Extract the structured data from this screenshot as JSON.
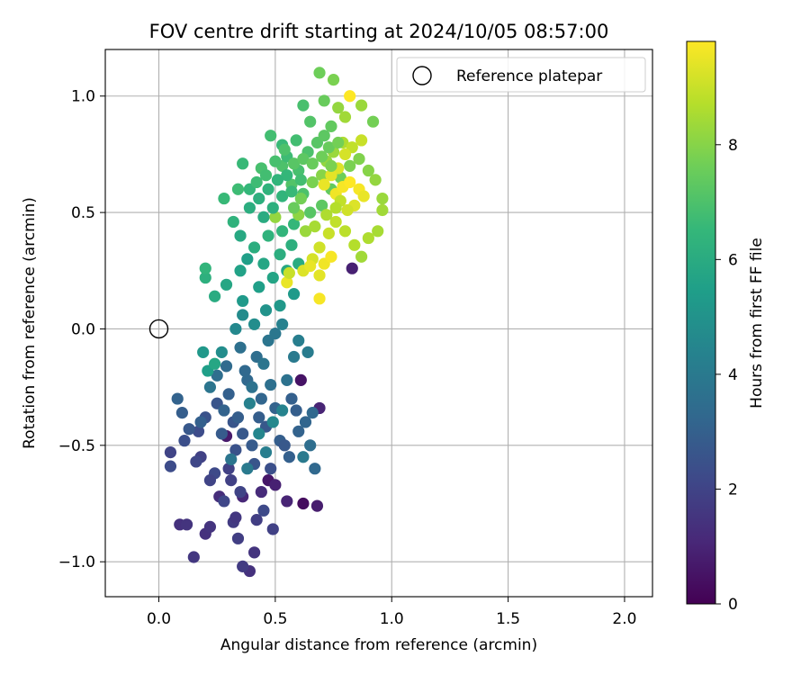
{
  "chart_data": {
    "type": "scatter",
    "title": "FOV centre drift starting at 2024/10/05 08:57:00",
    "xlabel": "Angular distance from reference (arcmin)",
    "ylabel": "Rotation from reference (arcmin)",
    "xlim": [
      -0.23,
      2.12
    ],
    "ylim": [
      -1.15,
      1.2
    ],
    "xticks": [
      0.0,
      0.5,
      1.0,
      1.5,
      2.0
    ],
    "xtick_labels": [
      "0.0",
      "0.5",
      "1.0",
      "1.5",
      "2.0"
    ],
    "yticks": [
      -1.0,
      -0.5,
      0.0,
      0.5,
      1.0
    ],
    "ytick_labels": [
      "−1.0",
      "−0.5",
      "0.0",
      "0.5",
      "1.0"
    ],
    "grid": true,
    "legend": {
      "position": "upper right",
      "entries": [
        "Reference platepar"
      ]
    },
    "reference_point": {
      "x": 0.0,
      "y": 0.0,
      "marker": "open-circle"
    },
    "colorbar": {
      "label": "Hours from first FF file",
      "range": [
        0,
        9.8
      ],
      "ticks": [
        0,
        2,
        4,
        6,
        8
      ],
      "tick_labels": [
        "0",
        "2",
        "4",
        "6",
        "8"
      ],
      "colormap": "viridis"
    },
    "colormap_stops": [
      "#440154",
      "#482878",
      "#3e4989",
      "#31688e",
      "#26828e",
      "#1f9e89",
      "#35b779",
      "#6ece58",
      "#b5de2b",
      "#fde725"
    ],
    "points": [
      [
        0.62,
        -0.75,
        0.3
      ],
      [
        0.68,
        -0.76,
        0.8
      ],
      [
        0.61,
        -0.22,
        0.5
      ],
      [
        0.47,
        -0.65,
        0.6
      ],
      [
        0.29,
        -0.46,
        0.7
      ],
      [
        0.5,
        -0.67,
        0.9
      ],
      [
        0.69,
        -0.34,
        1.0
      ],
      [
        0.36,
        -0.72,
        1.1
      ],
      [
        0.44,
        -0.7,
        1.2
      ],
      [
        0.55,
        -0.74,
        1.0
      ],
      [
        0.83,
        0.26,
        0.9
      ],
      [
        0.09,
        -0.84,
        1.4
      ],
      [
        0.12,
        -0.84,
        1.5
      ],
      [
        0.15,
        -0.98,
        1.6
      ],
      [
        0.2,
        -0.88,
        1.4
      ],
      [
        0.22,
        -0.85,
        1.5
      ],
      [
        0.26,
        -0.72,
        1.3
      ],
      [
        0.32,
        -0.83,
        1.7
      ],
      [
        0.33,
        -0.81,
        1.6
      ],
      [
        0.39,
        -1.04,
        1.4
      ],
      [
        0.41,
        -0.96,
        1.5
      ],
      [
        0.36,
        -1.02,
        1.7
      ],
      [
        0.3,
        -0.6,
        1.9
      ],
      [
        0.42,
        -0.82,
        1.8
      ],
      [
        0.31,
        -0.65,
        1.9
      ],
      [
        0.35,
        -0.7,
        2.0
      ],
      [
        0.28,
        -0.74,
        2.1
      ],
      [
        0.34,
        -0.9,
        1.8
      ],
      [
        0.49,
        -0.86,
        1.9
      ],
      [
        0.45,
        -0.78,
        2.2
      ],
      [
        0.24,
        -0.62,
        2.2
      ],
      [
        0.22,
        -0.65,
        2.0
      ],
      [
        0.18,
        -0.55,
        1.9
      ],
      [
        0.16,
        -0.57,
        2.1
      ],
      [
        0.05,
        -0.53,
        2.0
      ],
      [
        0.05,
        -0.59,
        2.3
      ],
      [
        0.11,
        -0.48,
        2.4
      ],
      [
        0.17,
        -0.44,
        2.3
      ],
      [
        0.2,
        -0.38,
        2.5
      ],
      [
        0.25,
        -0.32,
        2.6
      ],
      [
        0.32,
        -0.4,
        2.6
      ],
      [
        0.36,
        -0.45,
        2.7
      ],
      [
        0.4,
        -0.5,
        2.8
      ],
      [
        0.46,
        -0.42,
        2.7
      ],
      [
        0.52,
        -0.48,
        2.9
      ],
      [
        0.56,
        -0.55,
        3.0
      ],
      [
        0.6,
        -0.44,
        3.1
      ],
      [
        0.63,
        -0.4,
        3.2
      ],
      [
        0.66,
        -0.36,
        3.3
      ],
      [
        0.57,
        -0.3,
        3.0
      ],
      [
        0.5,
        -0.34,
        3.1
      ],
      [
        0.44,
        -0.3,
        3.2
      ],
      [
        0.38,
        -0.22,
        3.3
      ],
      [
        0.3,
        -0.28,
        3.0
      ],
      [
        0.27,
        -0.45,
        2.8
      ],
      [
        0.33,
        -0.52,
        2.5
      ],
      [
        0.41,
        -0.58,
        2.6
      ],
      [
        0.48,
        -0.6,
        2.4
      ],
      [
        0.54,
        -0.5,
        2.7
      ],
      [
        0.59,
        -0.35,
        2.9
      ],
      [
        0.29,
        -0.16,
        3.4
      ],
      [
        0.35,
        -0.08,
        3.6
      ],
      [
        0.42,
        -0.12,
        3.5
      ],
      [
        0.47,
        -0.05,
        3.8
      ],
      [
        0.5,
        -0.02,
        3.9
      ],
      [
        0.37,
        -0.18,
        3.3
      ],
      [
        0.25,
        -0.2,
        3.5
      ],
      [
        0.28,
        -0.35,
        3.1
      ],
      [
        0.34,
        -0.38,
        2.9
      ],
      [
        0.43,
        -0.38,
        2.9
      ],
      [
        0.48,
        -0.24,
        3.6
      ],
      [
        0.55,
        -0.22,
        3.7
      ],
      [
        0.58,
        -0.12,
        4.0
      ],
      [
        0.64,
        -0.1,
        4.1
      ],
      [
        0.6,
        -0.05,
        4.2
      ],
      [
        0.53,
        0.02,
        4.3
      ],
      [
        0.45,
        -0.15,
        3.8
      ],
      [
        0.4,
        -0.25,
        3.7
      ],
      [
        0.22,
        -0.25,
        3.8
      ],
      [
        0.18,
        -0.4,
        3.0
      ],
      [
        0.13,
        -0.43,
        2.7
      ],
      [
        0.1,
        -0.36,
        2.9
      ],
      [
        0.08,
        -0.3,
        3.1
      ],
      [
        0.67,
        -0.6,
        3.3
      ],
      [
        0.65,
        -0.5,
        3.5
      ],
      [
        0.62,
        -0.55,
        4.0
      ],
      [
        0.39,
        -0.32,
        4.3
      ],
      [
        0.43,
        -0.45,
        4.5
      ],
      [
        0.49,
        -0.4,
        4.6
      ],
      [
        0.53,
        -0.35,
        4.4
      ],
      [
        0.46,
        -0.53,
        4.2
      ],
      [
        0.38,
        -0.6,
        4.0
      ],
      [
        0.31,
        -0.56,
        3.8
      ],
      [
        0.36,
        0.06,
        4.7
      ],
      [
        0.41,
        0.02,
        4.8
      ],
      [
        0.46,
        0.08,
        5.0
      ],
      [
        0.52,
        0.1,
        5.2
      ],
      [
        0.58,
        0.15,
        5.3
      ],
      [
        0.33,
        0.0,
        4.6
      ],
      [
        0.27,
        -0.1,
        4.8
      ],
      [
        0.19,
        -0.1,
        5.2
      ],
      [
        0.21,
        -0.18,
        5.5
      ],
      [
        0.24,
        -0.15,
        5.8
      ],
      [
        0.36,
        0.12,
        5.3
      ],
      [
        0.43,
        0.18,
        5.5
      ],
      [
        0.49,
        0.22,
        5.7
      ],
      [
        0.55,
        0.25,
        5.9
      ],
      [
        0.6,
        0.28,
        6.0
      ],
      [
        0.35,
        0.25,
        5.6
      ],
      [
        0.29,
        0.19,
        5.8
      ],
      [
        0.24,
        0.14,
        6.0
      ],
      [
        0.2,
        0.22,
        6.2
      ],
      [
        0.2,
        0.26,
        6.4
      ],
      [
        0.38,
        0.3,
        5.5
      ],
      [
        0.45,
        0.28,
        5.8
      ],
      [
        0.52,
        0.32,
        6.1
      ],
      [
        0.57,
        0.36,
        6.2
      ],
      [
        0.41,
        0.35,
        6.1
      ],
      [
        0.47,
        0.4,
        6.3
      ],
      [
        0.53,
        0.42,
        6.4
      ],
      [
        0.58,
        0.45,
        6.5
      ],
      [
        0.35,
        0.4,
        5.9
      ],
      [
        0.32,
        0.46,
        6.3
      ],
      [
        0.28,
        0.56,
        6.6
      ],
      [
        0.34,
        0.6,
        6.7
      ],
      [
        0.36,
        0.71,
        6.6
      ],
      [
        0.44,
        0.69,
        6.9
      ],
      [
        0.48,
        0.83,
        6.8
      ],
      [
        0.53,
        0.7,
        7.0
      ],
      [
        0.57,
        0.62,
        7.1
      ],
      [
        0.62,
        0.58,
        7.0
      ],
      [
        0.65,
        0.5,
        7.2
      ],
      [
        0.7,
        0.53,
        7.3
      ],
      [
        0.74,
        0.6,
        7.4
      ],
      [
        0.78,
        0.65,
        7.6
      ],
      [
        0.82,
        0.7,
        7.8
      ],
      [
        0.86,
        0.73,
        7.9
      ],
      [
        0.9,
        0.68,
        8.0
      ],
      [
        0.93,
        0.64,
        8.2
      ],
      [
        0.96,
        0.56,
        8.3
      ],
      [
        0.96,
        0.51,
        8.4
      ],
      [
        0.94,
        0.42,
        8.5
      ],
      [
        0.9,
        0.39,
        8.6
      ],
      [
        0.87,
        0.31,
        8.4
      ],
      [
        0.84,
        0.36,
        8.7
      ],
      [
        0.8,
        0.42,
        8.8
      ],
      [
        0.76,
        0.46,
        8.9
      ],
      [
        0.73,
        0.41,
        9.0
      ],
      [
        0.69,
        0.35,
        9.1
      ],
      [
        0.66,
        0.3,
        9.2
      ],
      [
        0.62,
        0.25,
        9.3
      ],
      [
        0.69,
        0.23,
        9.4
      ],
      [
        0.65,
        0.27,
        9.5
      ],
      [
        0.71,
        0.28,
        9.6
      ],
      [
        0.74,
        0.31,
        9.7
      ],
      [
        0.69,
        0.13,
        9.7
      ],
      [
        0.55,
        0.2,
        9.5
      ],
      [
        0.56,
        0.24,
        9.0
      ],
      [
        0.6,
        0.49,
        8.1
      ],
      [
        0.5,
        0.48,
        8.2
      ],
      [
        0.63,
        0.42,
        8.3
      ],
      [
        0.67,
        0.44,
        8.5
      ],
      [
        0.58,
        0.52,
        7.5
      ],
      [
        0.61,
        0.56,
        7.7
      ],
      [
        0.66,
        0.63,
        7.8
      ],
      [
        0.7,
        0.66,
        8.0
      ],
      [
        0.72,
        0.72,
        8.2
      ],
      [
        0.75,
        0.76,
        8.3
      ],
      [
        0.79,
        0.8,
        8.6
      ],
      [
        0.83,
        0.78,
        8.9
      ],
      [
        0.87,
        0.81,
        9.0
      ],
      [
        0.8,
        0.75,
        9.2
      ],
      [
        0.77,
        0.69,
        9.3
      ],
      [
        0.74,
        0.66,
        9.4
      ],
      [
        0.71,
        0.62,
        9.5
      ],
      [
        0.76,
        0.58,
        9.6
      ],
      [
        0.79,
        0.61,
        9.7
      ],
      [
        0.82,
        0.63,
        9.8
      ],
      [
        0.86,
        0.6,
        9.7
      ],
      [
        0.88,
        0.57,
        9.5
      ],
      [
        0.84,
        0.53,
        9.3
      ],
      [
        0.81,
        0.51,
        9.1
      ],
      [
        0.78,
        0.55,
        8.9
      ],
      [
        0.72,
        0.49,
        8.6
      ],
      [
        0.76,
        0.52,
        8.7
      ],
      [
        0.71,
        0.98,
        7.5
      ],
      [
        0.69,
        1.1,
        7.6
      ],
      [
        0.75,
        1.07,
        7.8
      ],
      [
        0.77,
        0.95,
        8.2
      ],
      [
        0.8,
        0.91,
        8.4
      ],
      [
        0.82,
        1.0,
        9.8
      ],
      [
        0.87,
        0.96,
        8.3
      ],
      [
        0.92,
        0.89,
        7.7
      ],
      [
        0.74,
        0.87,
        7.4
      ],
      [
        0.65,
        0.89,
        7.1
      ],
      [
        0.62,
        0.96,
        6.9
      ],
      [
        0.59,
        0.81,
        6.8
      ],
      [
        0.53,
        0.79,
        6.6
      ],
      [
        0.55,
        0.74,
        6.7
      ],
      [
        0.6,
        0.68,
        6.9
      ],
      [
        0.64,
        0.76,
        7.0
      ],
      [
        0.68,
        0.8,
        7.2
      ],
      [
        0.71,
        0.83,
        7.3
      ],
      [
        0.73,
        0.78,
        7.5
      ],
      [
        0.77,
        0.8,
        7.7
      ],
      [
        0.55,
        0.66,
        6.5
      ],
      [
        0.51,
        0.64,
        6.4
      ],
      [
        0.47,
        0.6,
        6.3
      ],
      [
        0.43,
        0.56,
        6.2
      ],
      [
        0.39,
        0.52,
        6.1
      ],
      [
        0.45,
        0.48,
        6.0
      ],
      [
        0.49,
        0.52,
        6.2
      ],
      [
        0.53,
        0.57,
        6.4
      ],
      [
        0.57,
        0.59,
        6.6
      ],
      [
        0.61,
        0.64,
        6.8
      ],
      [
        0.39,
        0.6,
        6.5
      ],
      [
        0.42,
        0.63,
        6.7
      ],
      [
        0.46,
        0.66,
        6.8
      ],
      [
        0.5,
        0.72,
        6.9
      ],
      [
        0.54,
        0.77,
        7.0
      ],
      [
        0.58,
        0.71,
        7.2
      ],
      [
        0.62,
        0.73,
        7.3
      ],
      [
        0.66,
        0.71,
        7.5
      ],
      [
        0.7,
        0.74,
        7.6
      ],
      [
        0.74,
        0.7,
        7.8
      ]
    ]
  }
}
